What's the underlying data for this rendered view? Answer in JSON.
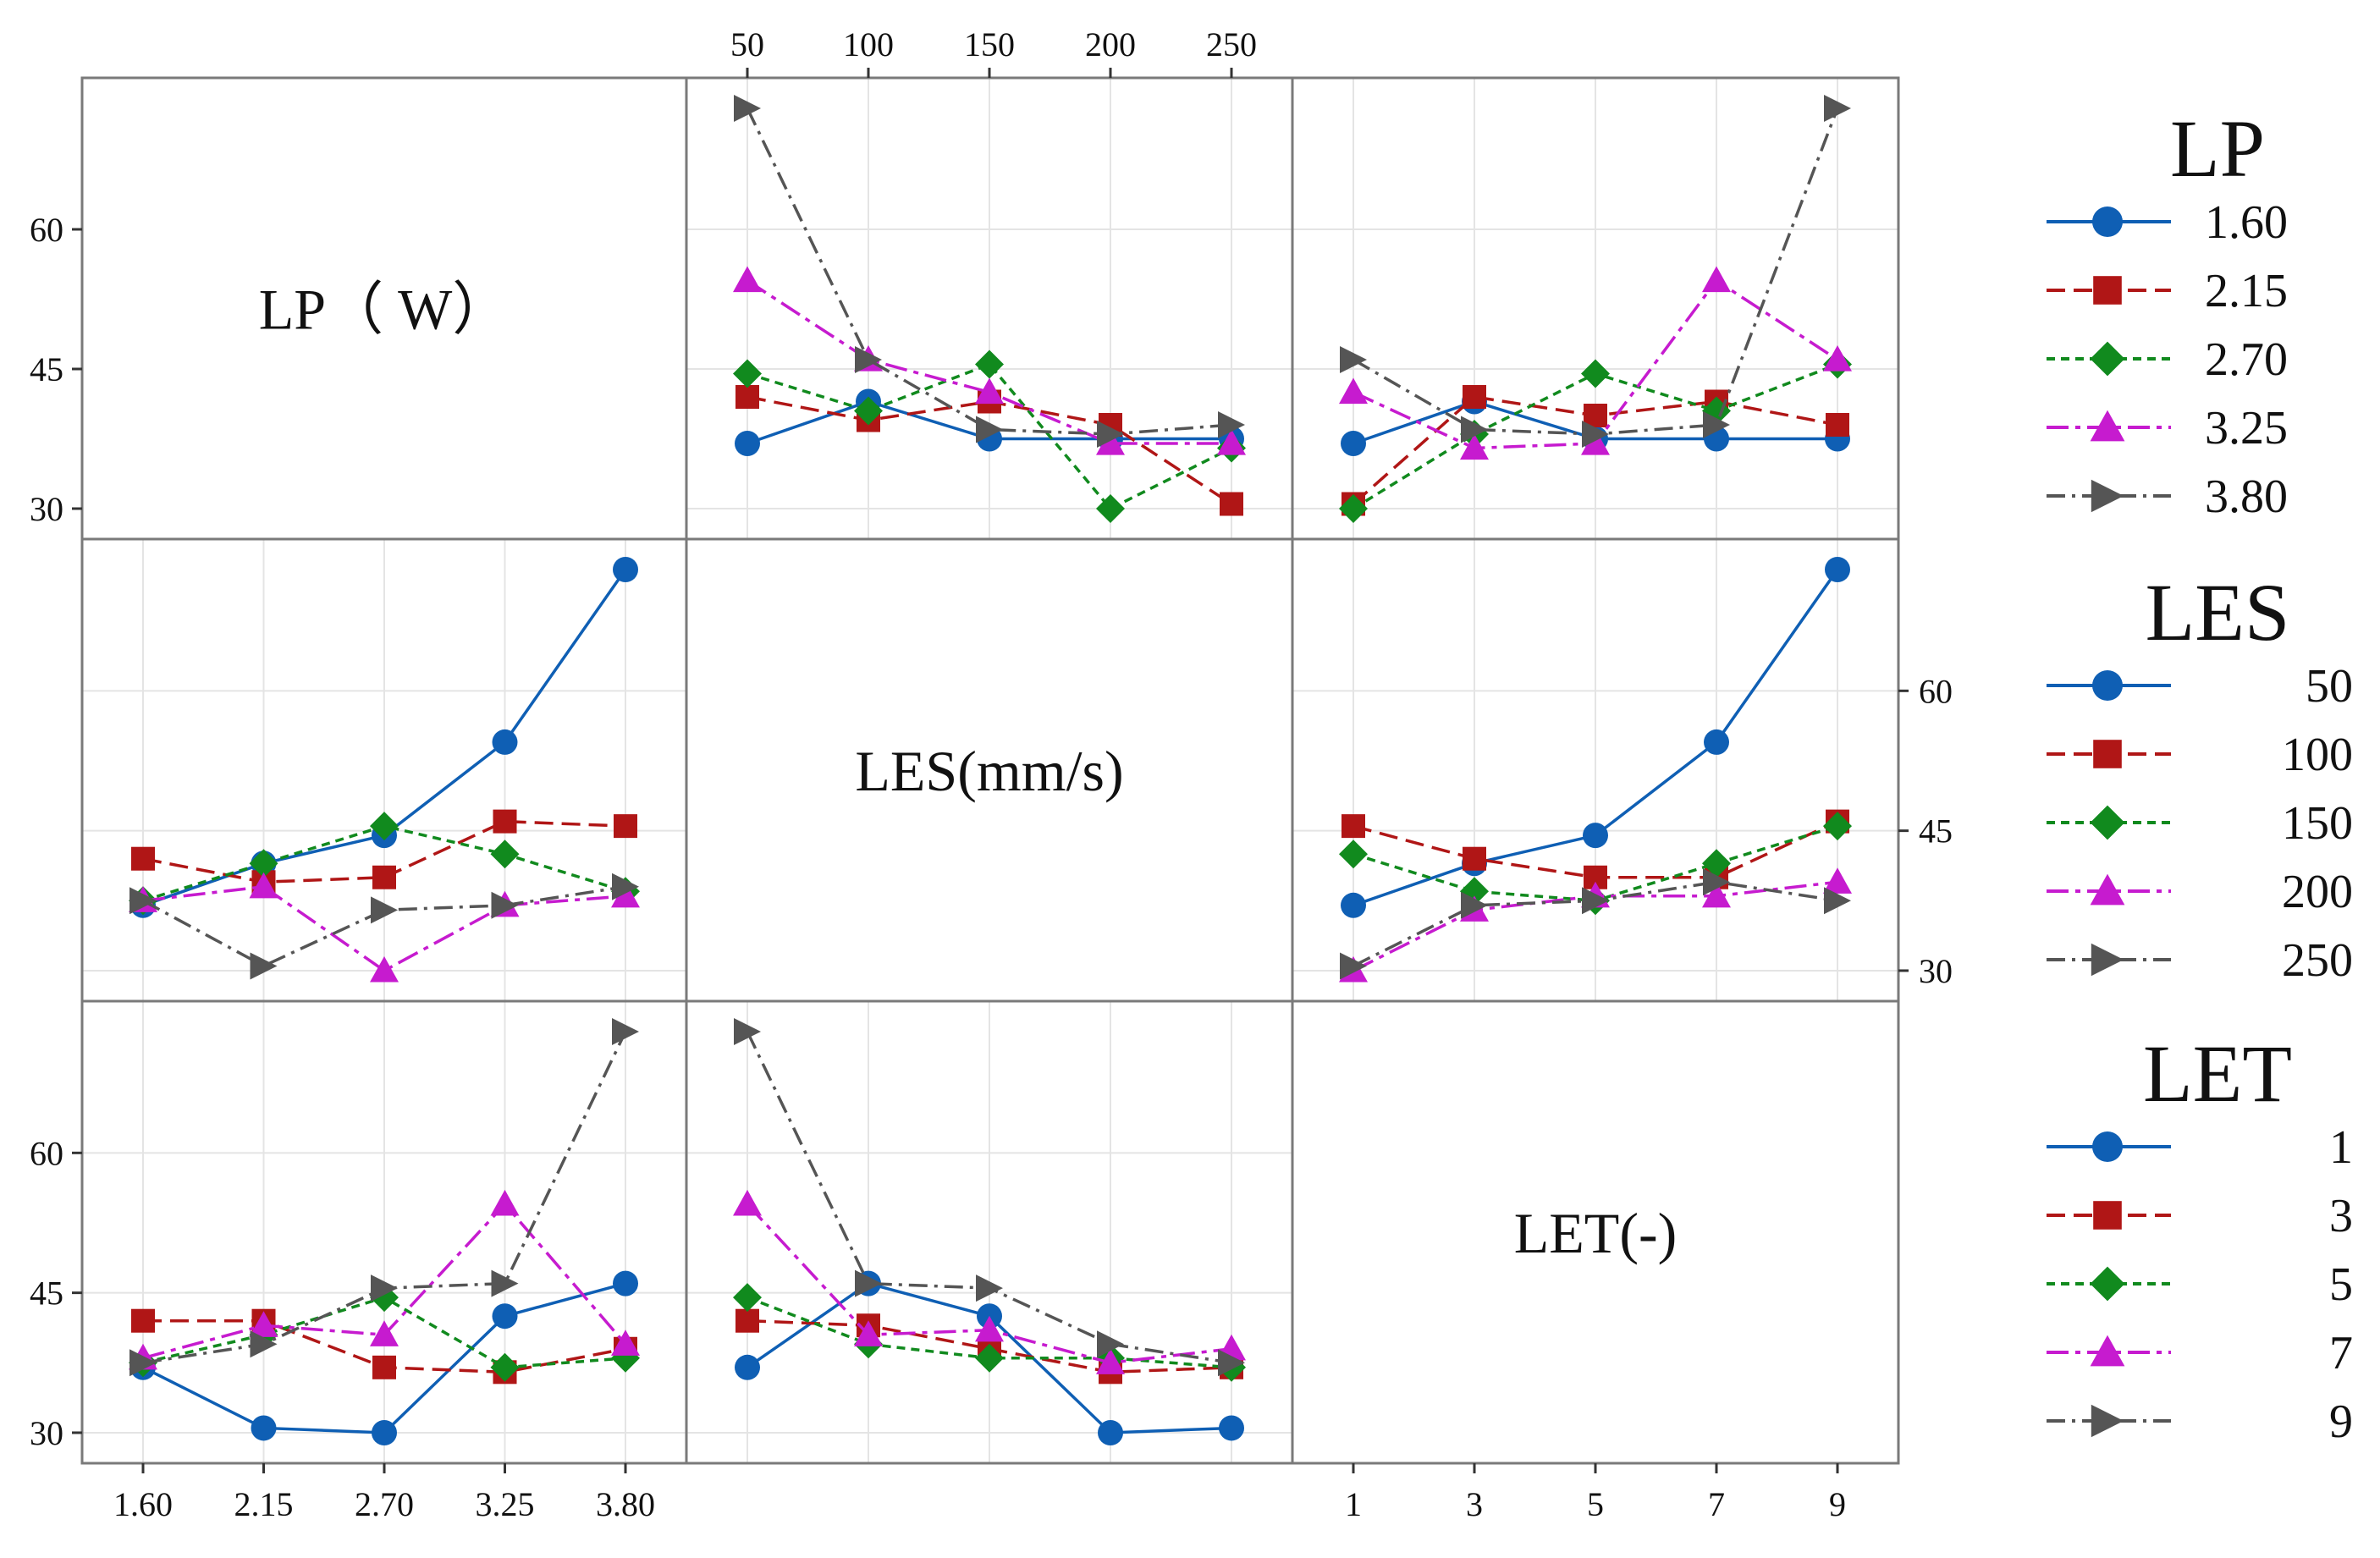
{
  "chart_data": {
    "type": "line",
    "title": "",
    "factors": [
      {
        "key": "LP",
        "label": "LP（ W）",
        "levels": [
          "1.60",
          "2.15",
          "2.70",
          "3.25",
          "3.80"
        ]
      },
      {
        "key": "LES",
        "label": "LES(mm/s)",
        "levels": [
          "50",
          "100",
          "150",
          "200",
          "250"
        ]
      },
      {
        "key": "LET",
        "label": "LET(-)",
        "levels": [
          "1",
          "3",
          "5",
          "7",
          "9"
        ]
      }
    ],
    "ylim": [
      28,
      75
    ],
    "y_ticks": [
      "30",
      "45",
      "60"
    ],
    "top_ticks": [
      "50",
      "100",
      "150",
      "200",
      "250"
    ],
    "bottom_ticks_left": [
      "1.60",
      "2.15",
      "2.70",
      "3.25",
      "3.80"
    ],
    "bottom_ticks_right": [
      "1",
      "3",
      "5",
      "7",
      "9"
    ],
    "series_styles": [
      {
        "color": "#0F5FB4",
        "marker": "circle",
        "dash": ""
      },
      {
        "color": "#B01616",
        "marker": "square",
        "dash": "22,10"
      },
      {
        "color": "#118A1E",
        "marker": "diamond",
        "dash": "10,7"
      },
      {
        "color": "#C61BCF",
        "marker": "triangle",
        "dash": "26,8,6,8"
      },
      {
        "color": "#555555",
        "marker": "arrow",
        "dash": "22,8,4,8"
      }
    ],
    "legend": [
      {
        "title": "LP",
        "entries": [
          "1.60",
          "2.15",
          "2.70",
          "3.25",
          "3.80"
        ]
      },
      {
        "title": "LES",
        "entries": [
          "50",
          "100",
          "150",
          "200",
          "250"
        ]
      },
      {
        "title": "LET",
        "entries": [
          "1",
          "3",
          "5",
          "7",
          "9"
        ]
      }
    ],
    "panels": [
      {
        "row": 0,
        "col": 1,
        "x_factor": "LES",
        "series_factor": "LP",
        "series": [
          {
            "name": "1.60",
            "values": [
              37,
              41.5,
              37.5,
              37.5,
              37.5
            ]
          },
          {
            "name": "2.15",
            "values": [
              42,
              39.5,
              41.5,
              39,
              30.5
            ]
          },
          {
            "name": "2.70",
            "values": [
              44.5,
              40.5,
              45.5,
              30,
              36.5
            ]
          },
          {
            "name": "3.25",
            "values": [
              54.5,
              46,
              42.5,
              37,
              37
            ]
          },
          {
            "name": "3.80",
            "values": [
              73,
              46,
              38.5,
              38,
              39
            ]
          }
        ]
      },
      {
        "row": 0,
        "col": 2,
        "x_factor": "LET",
        "series_factor": "LP",
        "series": [
          {
            "name": "1.60",
            "values": [
              37,
              41.5,
              37.5,
              37.5,
              37.5
            ]
          },
          {
            "name": "2.15",
            "values": [
              30.5,
              42,
              40,
              41.5,
              39
            ]
          },
          {
            "name": "2.70",
            "values": [
              30,
              38,
              44.5,
              40.5,
              45.5
            ]
          },
          {
            "name": "3.25",
            "values": [
              42.5,
              36.5,
              37,
              54.5,
              46
            ]
          },
          {
            "name": "3.80",
            "values": [
              46,
              38.5,
              38,
              39,
              73
            ]
          }
        ]
      },
      {
        "row": 1,
        "col": 0,
        "x_factor": "LP",
        "series_factor": "LES",
        "series": [
          {
            "name": "50",
            "values": [
              37,
              41.5,
              44.5,
              54.5,
              73
            ]
          },
          {
            "name": "100",
            "values": [
              42,
              39.5,
              40,
              46,
              45.5
            ]
          },
          {
            "name": "150",
            "values": [
              37.5,
              41.5,
              45.5,
              42.5,
              38.5
            ]
          },
          {
            "name": "200",
            "values": [
              37.5,
              39,
              30,
              37,
              38
            ]
          },
          {
            "name": "250",
            "values": [
              37.5,
              30.5,
              36.5,
              37,
              39
            ]
          }
        ]
      },
      {
        "row": 1,
        "col": 2,
        "x_factor": "LET",
        "series_factor": "LES",
        "series": [
          {
            "name": "50",
            "values": [
              37,
              41.5,
              44.5,
              54.5,
              73
            ]
          },
          {
            "name": "100",
            "values": [
              45.5,
              42,
              40,
              40,
              46
            ]
          },
          {
            "name": "150",
            "values": [
              42.5,
              38.5,
              37.5,
              41.5,
              45.5
            ]
          },
          {
            "name": "200",
            "values": [
              30,
              36.5,
              38,
              38,
              39.5
            ]
          },
          {
            "name": "250",
            "values": [
              30.5,
              37,
              37.5,
              39.5,
              37.5
            ]
          }
        ]
      },
      {
        "row": 2,
        "col": 0,
        "x_factor": "LP",
        "series_factor": "LET",
        "series": [
          {
            "name": "1",
            "values": [
              37,
              30.5,
              30,
              42.5,
              46
            ]
          },
          {
            "name": "3",
            "values": [
              42,
              42,
              37,
              36.5,
              39
            ]
          },
          {
            "name": "5",
            "values": [
              37.5,
              40.5,
              44.5,
              37,
              38
            ]
          },
          {
            "name": "7",
            "values": [
              38,
              41.5,
              40.5,
              54.5,
              39.5
            ]
          },
          {
            "name": "9",
            "values": [
              37.5,
              39.5,
              45.5,
              46,
              73
            ]
          }
        ]
      },
      {
        "row": 2,
        "col": 1,
        "x_factor": "LES",
        "series_factor": "LET",
        "series": [
          {
            "name": "1",
            "values": [
              37,
              46,
              42.5,
              30,
              30.5
            ]
          },
          {
            "name": "3",
            "values": [
              42,
              41.5,
              39,
              36.5,
              37
            ]
          },
          {
            "name": "5",
            "values": [
              44.5,
              39.5,
              38,
              38,
              37
            ]
          },
          {
            "name": "7",
            "values": [
              54.5,
              40.5,
              41,
              37.5,
              39
            ]
          },
          {
            "name": "9",
            "values": [
              73,
              46,
              45.5,
              39.5,
              37.5
            ]
          }
        ]
      }
    ]
  }
}
